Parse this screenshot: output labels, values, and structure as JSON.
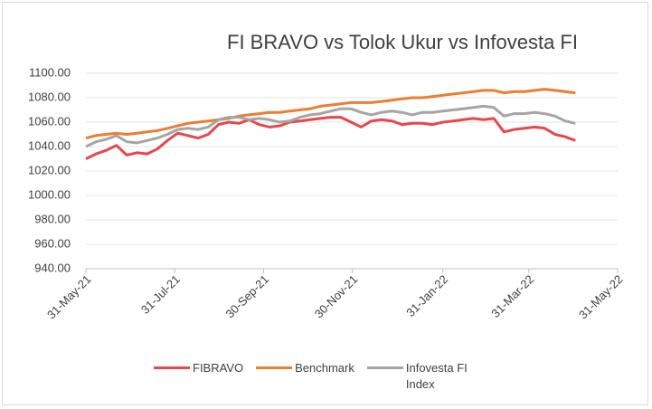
{
  "chart_data": {
    "type": "line",
    "title": "FI BRAVO vs Tolok Ukur vs Infovesta FI",
    "x": [
      "2021-05-31",
      "2021-06-07",
      "2021-06-14",
      "2021-06-21",
      "2021-06-28",
      "2021-07-05",
      "2021-07-12",
      "2021-07-19",
      "2021-07-26",
      "2021-08-02",
      "2021-08-09",
      "2021-08-16",
      "2021-08-23",
      "2021-08-30",
      "2021-09-06",
      "2021-09-13",
      "2021-09-20",
      "2021-09-27",
      "2021-10-04",
      "2021-10-11",
      "2021-10-18",
      "2021-10-25",
      "2021-11-01",
      "2021-11-08",
      "2021-11-15",
      "2021-11-22",
      "2021-11-29",
      "2021-12-06",
      "2021-12-13",
      "2021-12-20",
      "2021-12-27",
      "2022-01-03",
      "2022-01-10",
      "2022-01-17",
      "2022-01-24",
      "2022-01-31",
      "2022-02-07",
      "2022-02-14",
      "2022-02-21",
      "2022-02-28",
      "2022-03-07",
      "2022-03-14",
      "2022-03-21",
      "2022-03-28",
      "2022-04-04",
      "2022-04-11",
      "2022-04-18",
      "2022-04-25",
      "2022-05-02"
    ],
    "series": [
      {
        "name": "FIBRAVO",
        "color": "#e8474c",
        "values": [
          1030,
          1034,
          1037,
          1041,
          1033,
          1035,
          1034,
          1038,
          1045,
          1051,
          1049,
          1047,
          1050,
          1058,
          1060,
          1059,
          1062,
          1058,
          1056,
          1057,
          1060,
          1061,
          1062,
          1063,
          1064,
          1064,
          1060,
          1056,
          1061,
          1062,
          1061,
          1058,
          1059,
          1059,
          1058,
          1060,
          1061,
          1062,
          1063,
          1062,
          1063,
          1052,
          1054,
          1055,
          1056,
          1055,
          1050,
          1048,
          1045
        ]
      },
      {
        "name": "Benchmark",
        "color": "#ed7d31",
        "values": [
          1047,
          1049,
          1050,
          1051,
          1050,
          1051,
          1052,
          1053,
          1055,
          1057,
          1059,
          1060,
          1061,
          1062,
          1063,
          1065,
          1066,
          1067,
          1068,
          1068,
          1069,
          1070,
          1071,
          1073,
          1074,
          1075,
          1076,
          1076,
          1076,
          1077,
          1078,
          1079,
          1080,
          1080,
          1081,
          1082,
          1083,
          1084,
          1085,
          1086,
          1086,
          1084,
          1085,
          1085,
          1086,
          1087,
          1086,
          1085,
          1084
        ]
      },
      {
        "name": "Infovesta FI Index",
        "color": "#a5a5a5",
        "values": [
          1040,
          1044,
          1046,
          1049,
          1044,
          1043,
          1045,
          1047,
          1050,
          1054,
          1055,
          1054,
          1056,
          1062,
          1064,
          1064,
          1062,
          1063,
          1062,
          1060,
          1061,
          1064,
          1066,
          1067,
          1069,
          1071,
          1071,
          1068,
          1066,
          1068,
          1069,
          1068,
          1066,
          1068,
          1068,
          1069,
          1070,
          1071,
          1072,
          1073,
          1072,
          1065,
          1067,
          1067,
          1068,
          1067,
          1065,
          1061,
          1059
        ]
      }
    ],
    "xlim": [
      "2021-05-31",
      "2022-05-31"
    ],
    "xticks": [
      {
        "value": "2021-05-31",
        "label": "31-May-21"
      },
      {
        "value": "2021-07-31",
        "label": "31-Jul-21"
      },
      {
        "value": "2021-09-30",
        "label": "30-Sep-21"
      },
      {
        "value": "2021-11-30",
        "label": "30-Nov-21"
      },
      {
        "value": "2022-01-31",
        "label": "31-Jan-22"
      },
      {
        "value": "2022-03-31",
        "label": "31-Mar-22"
      },
      {
        "value": "2022-05-31",
        "label": "31-May-22"
      }
    ],
    "ylim": [
      940,
      1100
    ],
    "yticks": [
      {
        "value": 940,
        "label": "940.00"
      },
      {
        "value": 960,
        "label": "960.00"
      },
      {
        "value": 980,
        "label": "980.00"
      },
      {
        "value": 1000,
        "label": "1000.00"
      },
      {
        "value": 1020,
        "label": "1020.00"
      },
      {
        "value": 1040,
        "label": "1040.00"
      },
      {
        "value": 1060,
        "label": "1060.00"
      },
      {
        "value": 1080,
        "label": "1080.00"
      },
      {
        "value": 1100,
        "label": "1100.00"
      }
    ],
    "grid": true,
    "legend": "bottom"
  }
}
